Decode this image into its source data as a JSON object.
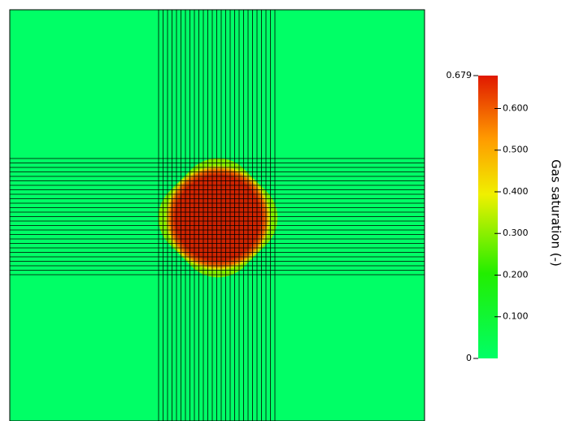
{
  "chart_data": {
    "type": "colorbar",
    "colorbar_label": "Gas saturation (-)",
    "ylim": [
      0,
      0.679
    ],
    "yticks": [
      0,
      {
        "value": 0.1,
        "label": "0.100"
      },
      {
        "value": 0.2,
        "label": "0.200"
      },
      {
        "value": 0.3,
        "label": "0.300"
      },
      {
        "value": 0.4,
        "label": "0.400"
      },
      {
        "value": 0.5,
        "label": "0.500"
      },
      {
        "value": 0.6,
        "label": "0.600"
      },
      0.679
    ]
  }
}
